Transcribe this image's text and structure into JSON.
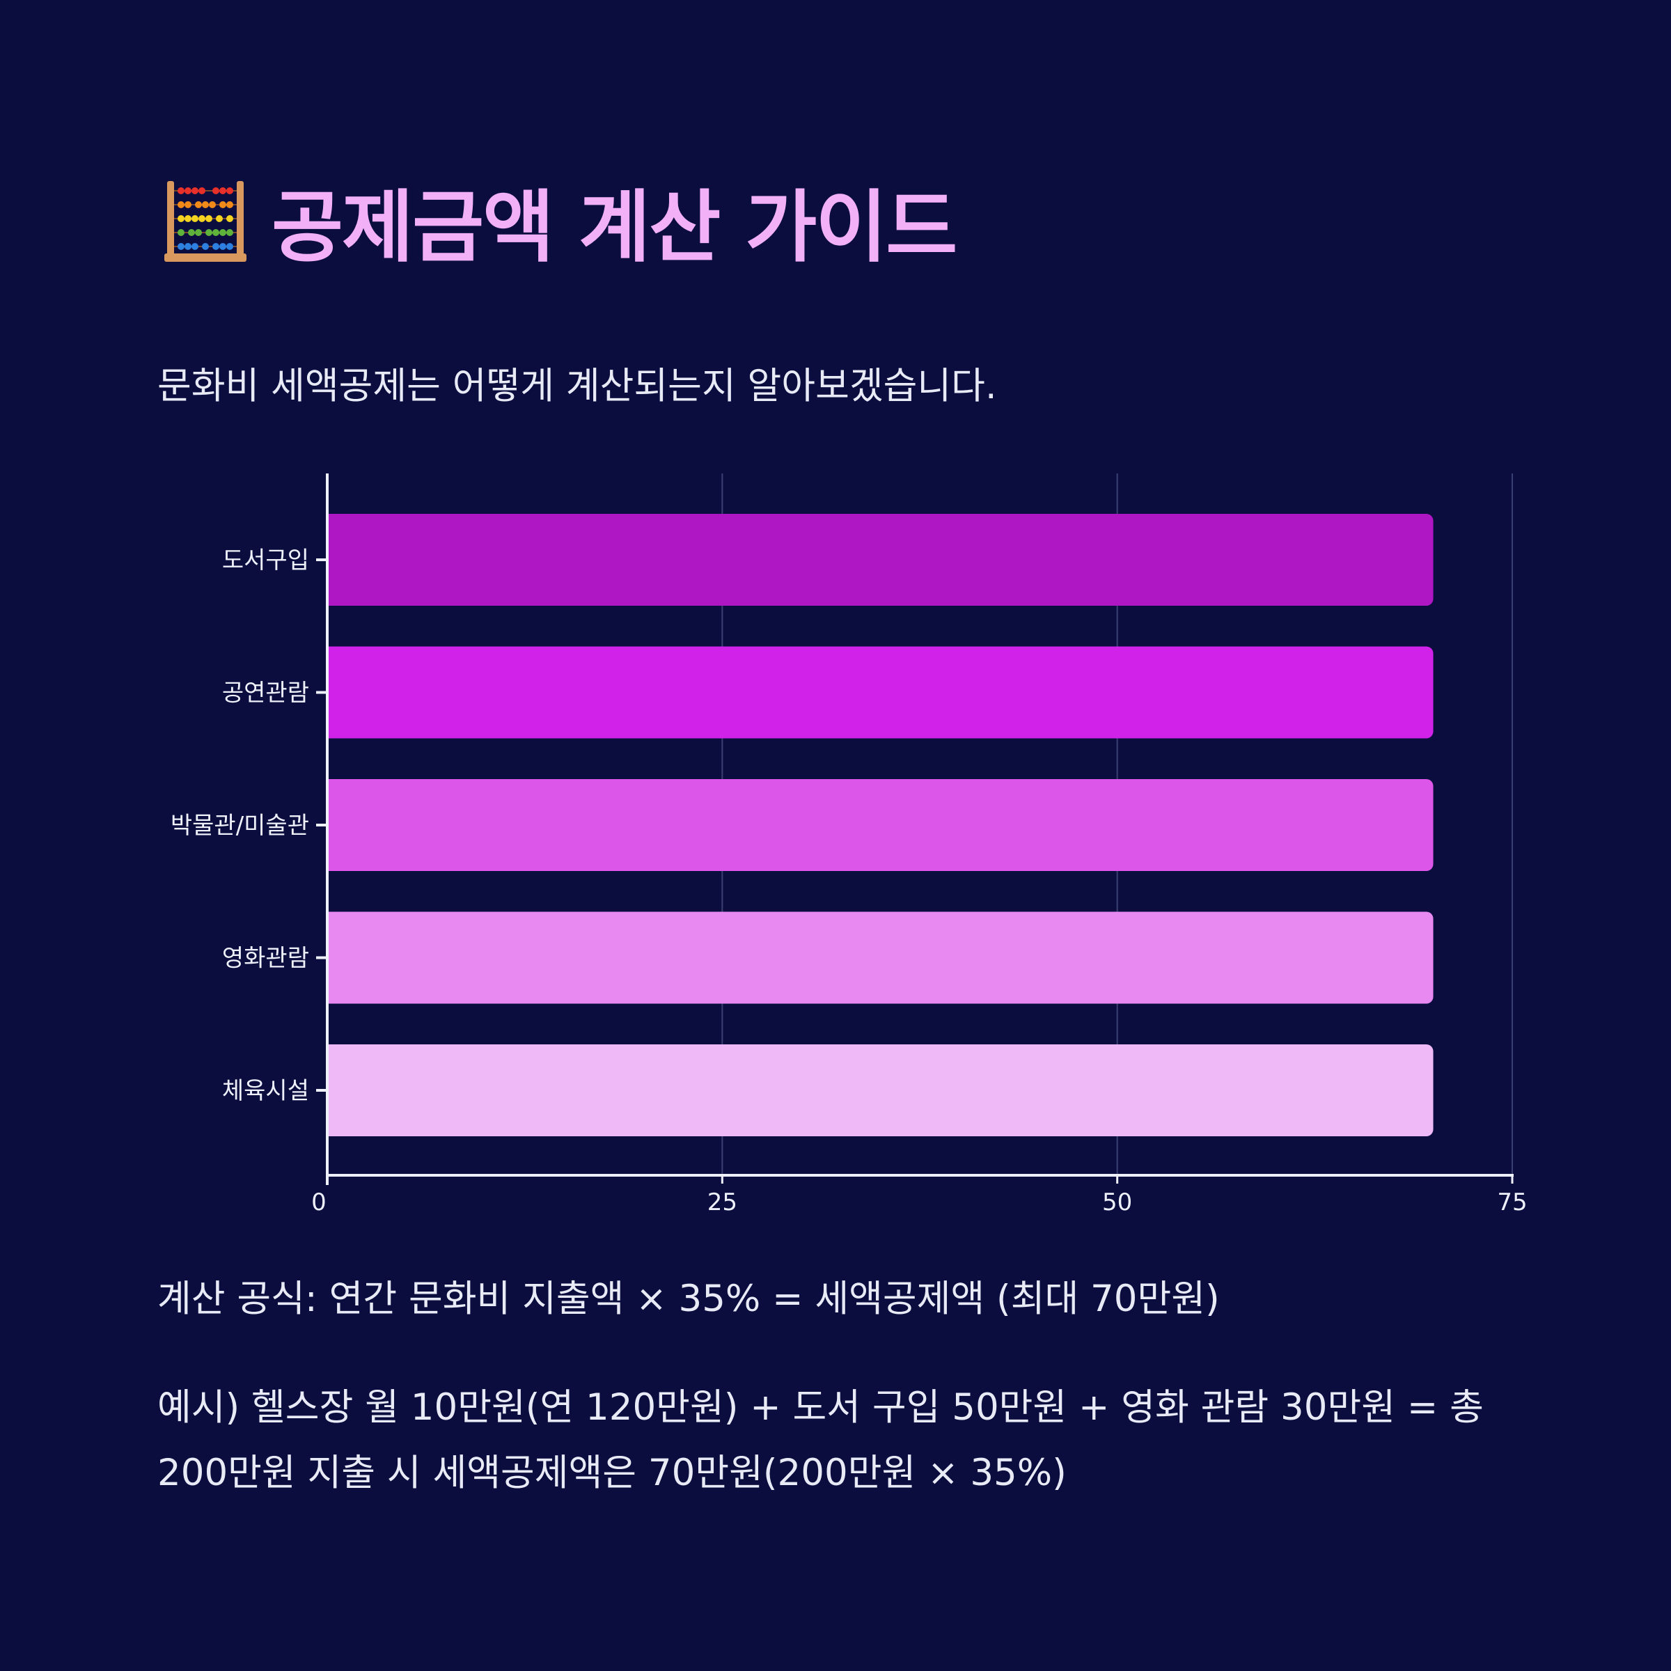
{
  "header": {
    "icon": "abacus-icon",
    "title": "공제금액 계산 가이드",
    "subtitle": "문화비 세액공제는 어떻게 계산되는지 알아보겠습니다."
  },
  "chart_data": {
    "type": "bar",
    "orientation": "horizontal",
    "categories": [
      "도서구입",
      "공연관람",
      "박물관/미술관",
      "영화관람",
      "체육시설"
    ],
    "values": [
      70,
      70,
      70,
      70,
      70
    ],
    "colors": [
      "#ae17c3",
      "#d022e8",
      "#dc56ea",
      "#e789f1",
      "#eeb9f6"
    ],
    "xlim": [
      0,
      75
    ],
    "xticks": [
      "0",
      "25",
      "50",
      "75"
    ],
    "grid": true,
    "legend": "none"
  },
  "notes": {
    "formula": "계산 공식: 연간 문화비 지출액 × 35% = 세액공제액 (최대 70만원)",
    "example_line1": "예시) 헬스장 월 10만원(연 120만원) + 도서 구입 50만원 + 영화 관람 30만원 = 총",
    "example_line2": "200만원 지출 시 세액공제액은 70만원(200만원 × 35%)"
  },
  "theme": {
    "background": "#0a0d3e",
    "title_color": "#f2b0f6",
    "text_color": "#e8eaf6"
  }
}
